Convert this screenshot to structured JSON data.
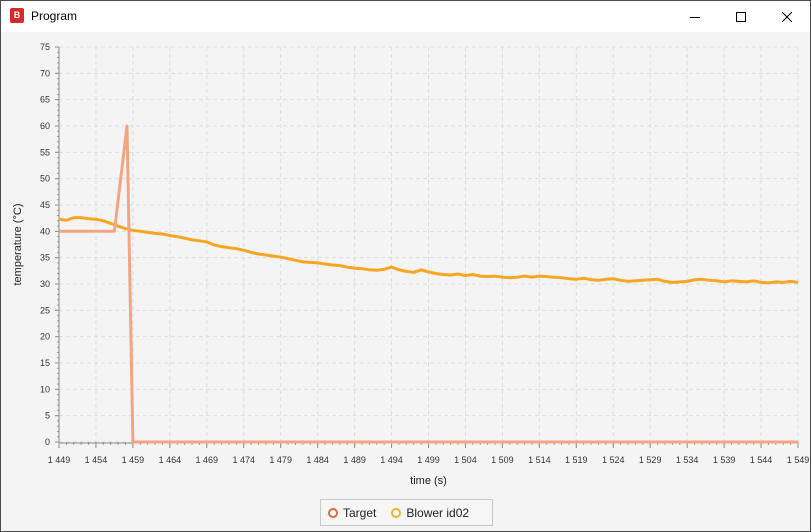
{
  "window": {
    "title": "Program",
    "app_icon": "app-logo-icon",
    "controls": [
      "minimize-icon",
      "maximize-icon",
      "close-icon"
    ]
  },
  "chart_data": {
    "type": "line",
    "title": "",
    "xlabel": "time (s)",
    "ylabel": "temperature (°C)",
    "xlim": [
      1449,
      1549
    ],
    "ylim": [
      0,
      75
    ],
    "x_tick_labels": [
      "1 449",
      "1 454",
      "1 459",
      "1 464",
      "1 469",
      "1 474",
      "1 479",
      "1 484",
      "1 489",
      "1 494",
      "1 499",
      "1 504",
      "1 509",
      "1 514",
      "1 519",
      "1 524",
      "1 529",
      "1 534",
      "1 539",
      "1 544",
      "1 549"
    ],
    "y_tick_labels": [
      "0",
      "5",
      "10",
      "15",
      "20",
      "25",
      "30",
      "35",
      "40",
      "45",
      "50",
      "55",
      "60",
      "65",
      "70",
      "75"
    ],
    "grid": true,
    "legend_position": "bottom-center",
    "series": [
      {
        "name": "Target",
        "color": "#f2a585",
        "marker_color": "#e8683a",
        "x": [
          1449,
          1456.5,
          1458.2,
          1459.0,
          1549
        ],
        "y": [
          40,
          40,
          60,
          0,
          0
        ]
      },
      {
        "name": "Blower id02",
        "color": "#f5a623",
        "marker_color": "#f0b429",
        "x": [
          1449,
          1450,
          1451,
          1452,
          1453,
          1454,
          1455,
          1456,
          1457,
          1458,
          1459,
          1460,
          1461,
          1462,
          1463,
          1464,
          1465,
          1466,
          1467,
          1468,
          1469,
          1470,
          1471,
          1472,
          1473,
          1474,
          1475,
          1476,
          1477,
          1478,
          1479,
          1480,
          1481,
          1482,
          1483,
          1484,
          1485,
          1486,
          1487,
          1488,
          1489,
          1490,
          1491,
          1492,
          1493,
          1494,
          1495,
          1496,
          1497,
          1498,
          1499,
          1500,
          1501,
          1502,
          1503,
          1504,
          1505,
          1506,
          1507,
          1508,
          1509,
          1510,
          1511,
          1512,
          1513,
          1514,
          1515,
          1516,
          1517,
          1518,
          1519,
          1520,
          1521,
          1522,
          1523,
          1524,
          1525,
          1526,
          1527,
          1528,
          1529,
          1530,
          1531,
          1532,
          1533,
          1534,
          1535,
          1536,
          1537,
          1538,
          1539,
          1540,
          1541,
          1542,
          1543,
          1544,
          1545,
          1546,
          1547,
          1548,
          1549
        ],
        "y": [
          42.3,
          42.1,
          42.6,
          42.6,
          42.4,
          42.3,
          42.0,
          41.5,
          41.0,
          40.5,
          40.2,
          40.0,
          39.8,
          39.6,
          39.5,
          39.2,
          39.0,
          38.7,
          38.4,
          38.2,
          38.0,
          37.4,
          37.1,
          36.9,
          36.7,
          36.4,
          36.0,
          35.7,
          35.5,
          35.3,
          35.1,
          34.8,
          34.5,
          34.2,
          34.1,
          34.0,
          33.8,
          33.6,
          33.5,
          33.2,
          33.0,
          32.9,
          32.7,
          32.6,
          32.8,
          33.2,
          32.7,
          32.4,
          32.2,
          32.7,
          32.3,
          32.0,
          31.8,
          31.7,
          31.9,
          31.6,
          31.8,
          31.5,
          31.4,
          31.5,
          31.3,
          31.2,
          31.3,
          31.5,
          31.3,
          31.5,
          31.4,
          31.3,
          31.2,
          31.0,
          30.9,
          31.1,
          30.8,
          30.7,
          30.9,
          31.0,
          30.7,
          30.5,
          30.6,
          30.7,
          30.8,
          30.9,
          30.5,
          30.3,
          30.4,
          30.5,
          30.8,
          30.9,
          30.7,
          30.6,
          30.4,
          30.6,
          30.5,
          30.4,
          30.6,
          30.3,
          30.2,
          30.4,
          30.3,
          30.5,
          30.3
        ]
      }
    ]
  }
}
